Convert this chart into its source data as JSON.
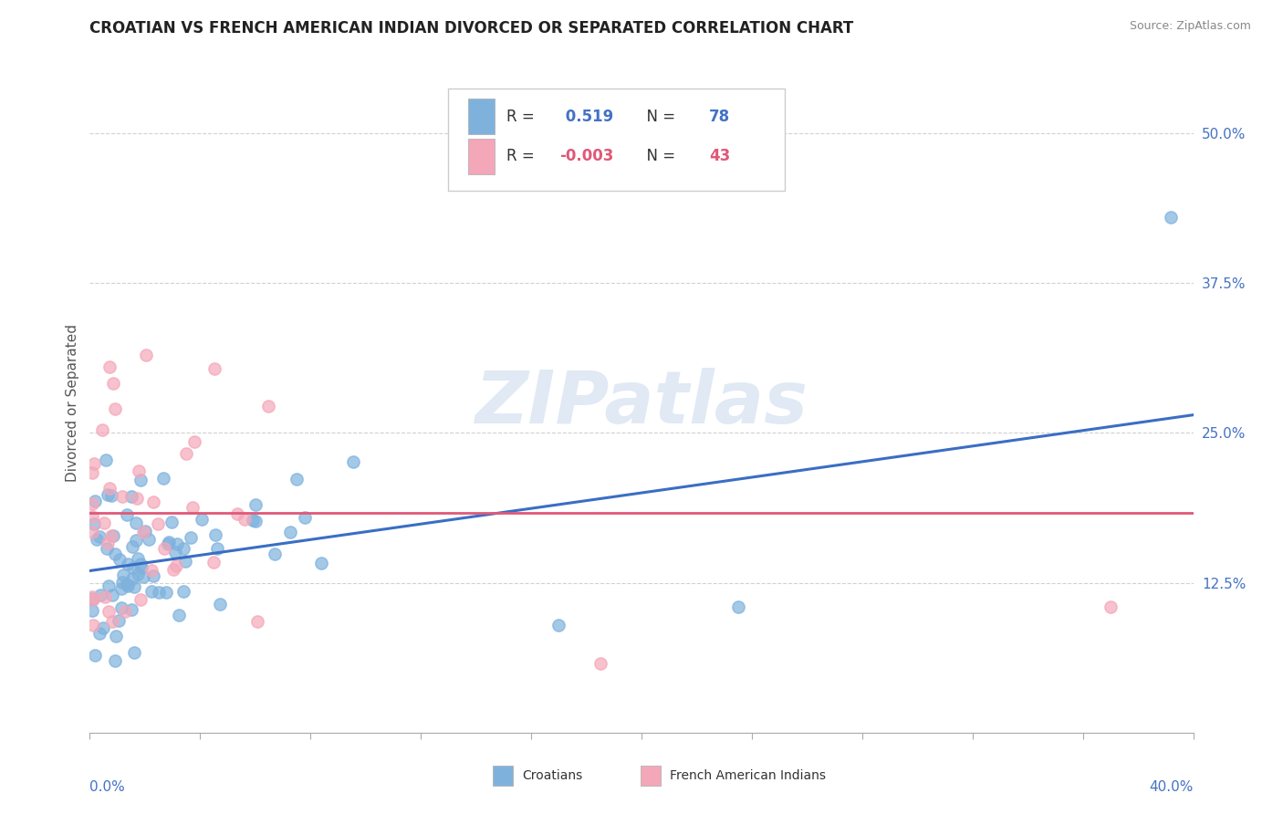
{
  "title": "CROATIAN VS FRENCH AMERICAN INDIAN DIVORCED OR SEPARATED CORRELATION CHART",
  "source": "Source: ZipAtlas.com",
  "ylabel": "Divorced or Separated",
  "yticks": [
    0.0,
    0.125,
    0.25,
    0.375,
    0.5
  ],
  "xlim": [
    0.0,
    0.4
  ],
  "ylim": [
    0.0,
    0.55
  ],
  "r_croatian": 0.519,
  "n_croatian": 78,
  "r_french": -0.003,
  "n_french": 43,
  "blue_color": "#7EB2DD",
  "pink_color": "#F4A7B9",
  "blue_line_color": "#3A6EC4",
  "pink_line_color": "#E05878",
  "watermark": "ZIPatlas",
  "legend_r_blue_text": "0.519",
  "legend_n_blue_text": "78",
  "legend_r_pink_text": "-0.003",
  "legend_n_pink_text": "43",
  "blue_line_y0": 0.135,
  "blue_line_y1": 0.265,
  "pink_line_y": 0.183
}
